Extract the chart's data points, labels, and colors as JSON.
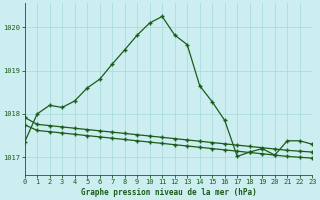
{
  "title": "Graphe pression niveau de la mer (hPa)",
  "bg_color": "#cceef0",
  "grid_color": "#aadddd",
  "line_color": "#1a5c1a",
  "xlim": [
    0,
    23
  ],
  "ylim": [
    1016.6,
    1020.55
  ],
  "yticks": [
    1017,
    1018,
    1019,
    1020
  ],
  "xticks": [
    0,
    1,
    2,
    3,
    4,
    5,
    6,
    7,
    8,
    9,
    10,
    11,
    12,
    13,
    14,
    15,
    16,
    17,
    18,
    19,
    20,
    21,
    22,
    23
  ],
  "line1": [
    [
      0,
      1017.35
    ],
    [
      1,
      1018.0
    ],
    [
      2,
      1018.2
    ],
    [
      3,
      1018.15
    ],
    [
      4,
      1018.3
    ],
    [
      5,
      1018.6
    ],
    [
      6,
      1018.8
    ],
    [
      7,
      1019.15
    ],
    [
      8,
      1019.48
    ],
    [
      9,
      1019.82
    ],
    [
      10,
      1020.1
    ],
    [
      11,
      1020.25
    ],
    [
      12,
      1019.82
    ],
    [
      13,
      1019.6
    ],
    [
      14,
      1018.65
    ],
    [
      15,
      1018.28
    ],
    [
      16,
      1017.85
    ],
    [
      17,
      1017.02
    ],
    [
      18,
      1017.12
    ],
    [
      19,
      1017.2
    ],
    [
      20,
      1017.05
    ],
    [
      21,
      1017.38
    ],
    [
      22,
      1017.38
    ],
    [
      23,
      1017.3
    ]
  ],
  "line2": [
    [
      0,
      1017.92
    ],
    [
      1,
      1017.76
    ],
    [
      2,
      1017.73
    ],
    [
      3,
      1017.7
    ],
    [
      4,
      1017.67
    ],
    [
      5,
      1017.64
    ],
    [
      6,
      1017.61
    ],
    [
      7,
      1017.58
    ],
    [
      8,
      1017.55
    ],
    [
      9,
      1017.52
    ],
    [
      10,
      1017.49
    ],
    [
      11,
      1017.46
    ],
    [
      12,
      1017.43
    ],
    [
      13,
      1017.4
    ],
    [
      14,
      1017.37
    ],
    [
      15,
      1017.34
    ],
    [
      16,
      1017.31
    ],
    [
      17,
      1017.28
    ],
    [
      18,
      1017.25
    ],
    [
      19,
      1017.22
    ],
    [
      20,
      1017.19
    ],
    [
      21,
      1017.16
    ],
    [
      22,
      1017.14
    ],
    [
      23,
      1017.12
    ]
  ],
  "line3": [
    [
      0,
      1017.75
    ],
    [
      1,
      1017.62
    ],
    [
      2,
      1017.59
    ],
    [
      3,
      1017.56
    ],
    [
      4,
      1017.53
    ],
    [
      5,
      1017.5
    ],
    [
      6,
      1017.47
    ],
    [
      7,
      1017.44
    ],
    [
      8,
      1017.41
    ],
    [
      9,
      1017.38
    ],
    [
      10,
      1017.35
    ],
    [
      11,
      1017.32
    ],
    [
      12,
      1017.29
    ],
    [
      13,
      1017.26
    ],
    [
      14,
      1017.23
    ],
    [
      15,
      1017.2
    ],
    [
      16,
      1017.17
    ],
    [
      17,
      1017.14
    ],
    [
      18,
      1017.11
    ],
    [
      19,
      1017.08
    ],
    [
      20,
      1017.05
    ],
    [
      21,
      1017.02
    ],
    [
      22,
      1017.0
    ],
    [
      23,
      1016.98
    ]
  ]
}
